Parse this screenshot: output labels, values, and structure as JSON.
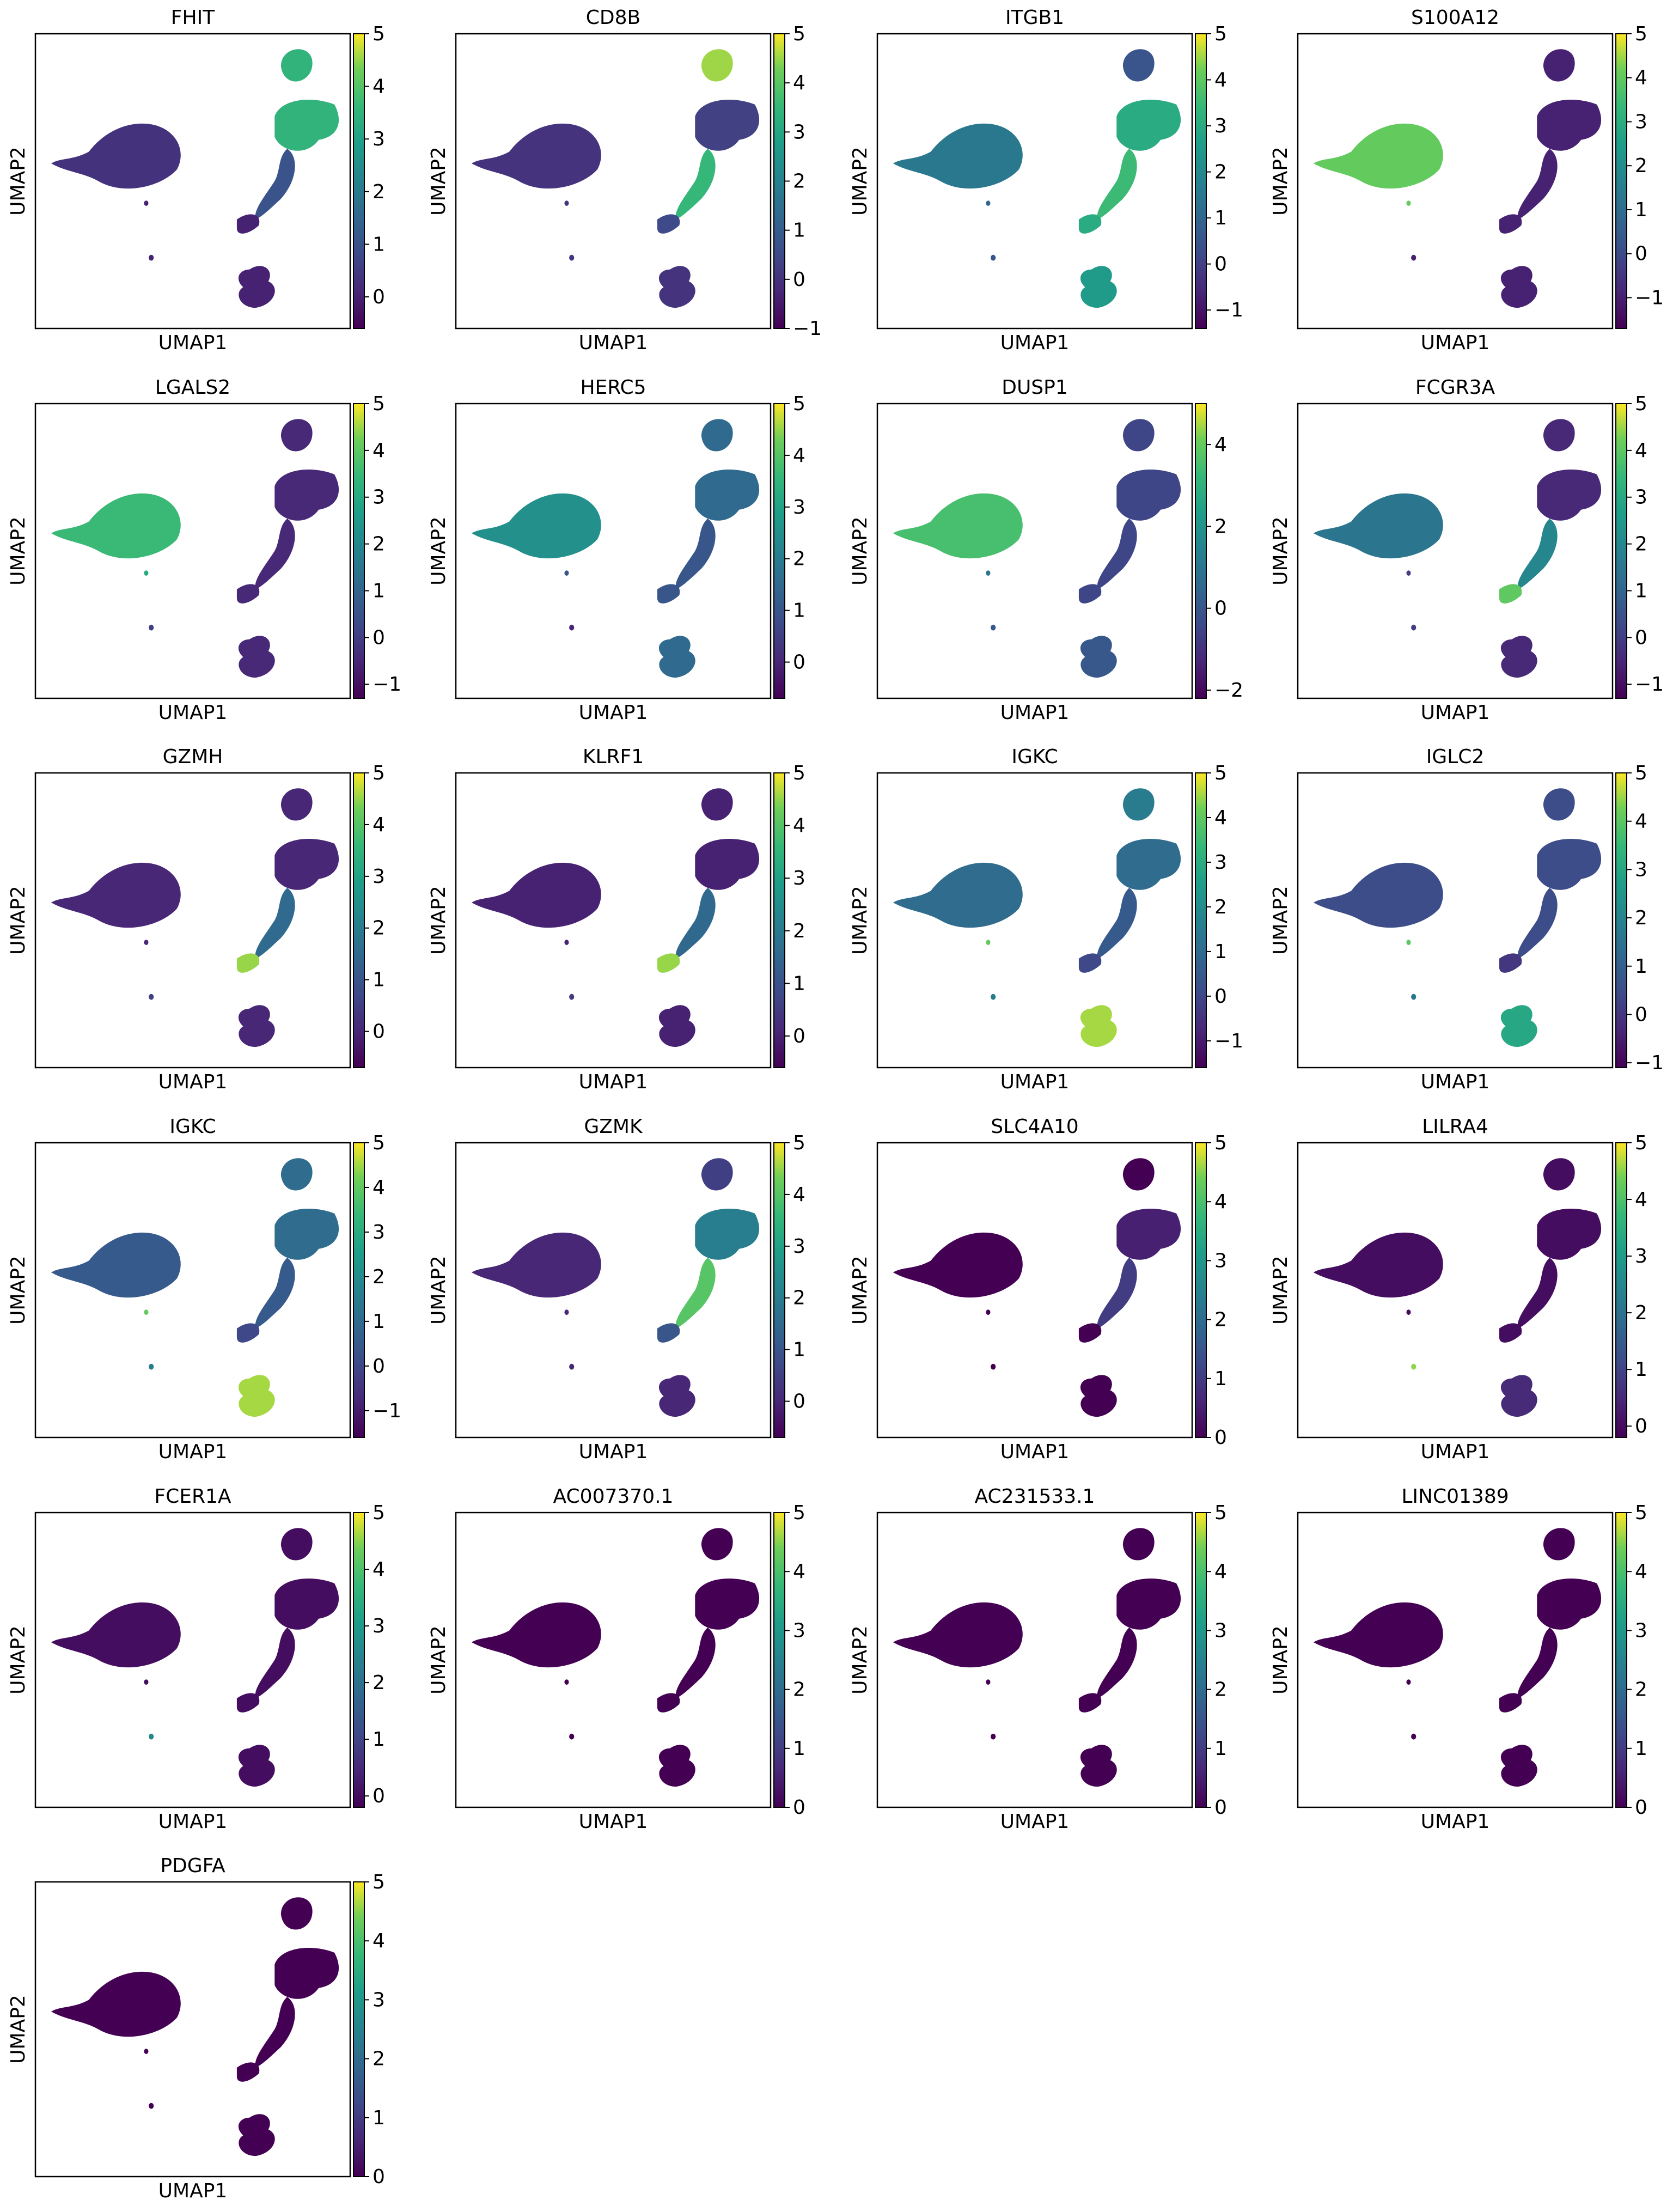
{
  "chart_data": [
    {
      "type": "scatter",
      "title": "FHIT",
      "xlabel": "UMAP1",
      "ylabel": "UMAP2",
      "clim": [
        -0.6,
        5
      ],
      "cticks": [
        0,
        1,
        2,
        3,
        4,
        5
      ],
      "values": [
        0.3,
        3.5,
        3.5,
        1,
        0,
        0,
        0,
        0
      ]
    },
    {
      "type": "scatter",
      "title": "CD8B",
      "xlabel": "UMAP1",
      "ylabel": "UMAP2",
      "clim": [
        -1,
        5
      ],
      "cticks": [
        {
          "value": -1,
          "label": "−1"
        },
        0,
        1,
        2,
        3,
        4,
        5
      ],
      "values": [
        0,
        4.5,
        0.3,
        3.5,
        0.5,
        0,
        0,
        0
      ]
    },
    {
      "type": "scatter",
      "title": "ITGB1",
      "xlabel": "UMAP1",
      "ylabel": "UMAP2",
      "clim": [
        -1.4,
        5
      ],
      "cticks": [
        {
          "value": -1,
          "label": "−1"
        },
        0,
        1,
        2,
        3,
        4,
        5
      ],
      "values": [
        1.5,
        0.5,
        3,
        3.5,
        3,
        2.5,
        1,
        0.5
      ]
    },
    {
      "type": "scatter",
      "title": "S100A12",
      "xlabel": "UMAP1",
      "ylabel": "UMAP2",
      "clim": [
        -1.7,
        5
      ],
      "cticks": [
        {
          "value": -1,
          "label": "−1"
        },
        0,
        1,
        2,
        3,
        4,
        5
      ],
      "values": [
        4,
        -1,
        -1,
        -1,
        -1,
        -1,
        4,
        -1
      ]
    },
    {
      "type": "scatter",
      "title": "LGALS2",
      "xlabel": "UMAP1",
      "ylabel": "UMAP2",
      "clim": [
        -1.3,
        5
      ],
      "cticks": [
        {
          "value": -1,
          "label": "−1"
        },
        0,
        1,
        2,
        3,
        4,
        5
      ],
      "values": [
        3.5,
        -0.5,
        -0.5,
        -0.5,
        -0.5,
        -0.5,
        3,
        0
      ]
    },
    {
      "type": "scatter",
      "title": "HERC5",
      "xlabel": "UMAP1",
      "ylabel": "UMAP2",
      "clim": [
        -0.7,
        5
      ],
      "cticks": [
        0,
        1,
        2,
        3,
        4,
        5
      ],
      "values": [
        2.5,
        1.5,
        1.5,
        1,
        1,
        1.5,
        1,
        0
      ]
    },
    {
      "type": "scatter",
      "title": "DUSP1",
      "xlabel": "UMAP1",
      "ylabel": "UMAP2",
      "clim": [
        -2.2,
        5
      ],
      "cticks": [
        {
          "value": -2,
          "label": "−2"
        },
        0,
        2,
        4
      ],
      "values": [
        3.5,
        -0.5,
        -0.5,
        -0.5,
        -0.5,
        0,
        1,
        0
      ]
    },
    {
      "type": "scatter",
      "title": "FCGR3A",
      "xlabel": "UMAP1",
      "ylabel": "UMAP2",
      "clim": [
        -1.3,
        5
      ],
      "cticks": [
        {
          "value": -1,
          "label": "−1"
        },
        0,
        1,
        2,
        3,
        4,
        5
      ],
      "values": [
        1.5,
        -0.5,
        -0.5,
        2,
        4,
        -0.5,
        0,
        0
      ]
    },
    {
      "type": "scatter",
      "title": "GZMH",
      "xlabel": "UMAP1",
      "ylabel": "UMAP2",
      "clim": [
        -0.7,
        5
      ],
      "cticks": [
        0,
        1,
        2,
        3,
        4,
        5
      ],
      "values": [
        0,
        0,
        0,
        1.5,
        4.5,
        0,
        0,
        0.5
      ]
    },
    {
      "type": "scatter",
      "title": "KLRF1",
      "xlabel": "UMAP1",
      "ylabel": "UMAP2",
      "clim": [
        -0.6,
        5
      ],
      "cticks": [
        0,
        1,
        2,
        3,
        4,
        5
      ],
      "values": [
        0,
        0,
        0,
        1.5,
        4.5,
        0,
        0,
        0.5
      ]
    },
    {
      "type": "scatter",
      "title": "IGKC",
      "xlabel": "UMAP1",
      "ylabel": "UMAP2",
      "clim": [
        -1.6,
        5
      ],
      "cticks": [
        {
          "value": -1,
          "label": "−1"
        },
        0,
        1,
        2,
        3,
        4,
        5
      ],
      "values": [
        1,
        1.5,
        1,
        0.5,
        0,
        4.5,
        4,
        1.5
      ]
    },
    {
      "type": "scatter",
      "title": "IGLC2",
      "xlabel": "UMAP1",
      "ylabel": "UMAP2",
      "clim": [
        -1.1,
        5
      ],
      "cticks": [
        {
          "value": -1,
          "label": "−1"
        },
        0,
        1,
        2,
        3,
        4,
        5
      ],
      "values": [
        0.5,
        0.5,
        0.5,
        0.5,
        0,
        3,
        4,
        1.5
      ]
    },
    {
      "type": "scatter",
      "title": "IGKC",
      "xlabel": "UMAP1",
      "ylabel": "UMAP2",
      "clim": [
        -1.6,
        5
      ],
      "cticks": [
        {
          "value": -1,
          "label": "−1"
        },
        0,
        1,
        2,
        3,
        4,
        5
      ],
      "values": [
        0.5,
        1,
        1,
        0.5,
        0,
        4.5,
        4,
        1.5
      ]
    },
    {
      "type": "scatter",
      "title": "GZMK",
      "xlabel": "UMAP1",
      "ylabel": "UMAP2",
      "clim": [
        -0.7,
        5
      ],
      "cticks": [
        0,
        1,
        2,
        3,
        4,
        5
      ],
      "values": [
        0,
        0.5,
        2,
        4,
        1,
        0,
        0,
        0
      ]
    },
    {
      "type": "scatter",
      "title": "SLC4A10",
      "xlabel": "UMAP1",
      "ylabel": "UMAP2",
      "clim": [
        0,
        5
      ],
      "cticks": [
        0,
        1,
        2,
        3,
        4,
        5
      ],
      "values": [
        0,
        0,
        0.5,
        1,
        0,
        0,
        0,
        0
      ]
    },
    {
      "type": "scatter",
      "title": "LILRA4",
      "xlabel": "UMAP1",
      "ylabel": "UMAP2",
      "clim": [
        -0.2,
        5
      ],
      "cticks": [
        0,
        1,
        2,
        3,
        4,
        5
      ],
      "values": [
        0,
        0,
        0,
        0,
        0,
        0.5,
        0,
        4.5
      ]
    },
    {
      "type": "scatter",
      "title": "FCER1A",
      "xlabel": "UMAP1",
      "ylabel": "UMAP2",
      "clim": [
        -0.2,
        5
      ],
      "cticks": [
        0,
        1,
        2,
        3,
        4,
        5
      ],
      "values": [
        0,
        0,
        0,
        0,
        0,
        0,
        0,
        2.5
      ]
    },
    {
      "type": "scatter",
      "title": "AC007370.1",
      "xlabel": "UMAP1",
      "ylabel": "UMAP2",
      "clim": [
        0,
        5
      ],
      "cticks": [
        0,
        1,
        2,
        3,
        4,
        5
      ],
      "values": [
        0,
        0,
        0,
        0,
        0,
        0,
        0,
        0
      ]
    },
    {
      "type": "scatter",
      "title": "AC231533.1",
      "xlabel": "UMAP1",
      "ylabel": "UMAP2",
      "clim": [
        0,
        5
      ],
      "cticks": [
        0,
        1,
        2,
        3,
        4,
        5
      ],
      "values": [
        0,
        0,
        0,
        0,
        0,
        0,
        0,
        0
      ]
    },
    {
      "type": "scatter",
      "title": "LINC01389",
      "xlabel": "UMAP1",
      "ylabel": "UMAP2",
      "clim": [
        0,
        5
      ],
      "cticks": [
        0,
        1,
        2,
        3,
        4,
        5
      ],
      "values": [
        0,
        0,
        0,
        0,
        0,
        0,
        0,
        0
      ]
    },
    {
      "type": "scatter",
      "title": "PDGFA",
      "xlabel": "UMAP1",
      "ylabel": "UMAP2",
      "clim": [
        0,
        5
      ],
      "cticks": [
        0,
        1,
        2,
        3,
        4,
        5
      ],
      "values": [
        0,
        0,
        0,
        0,
        0,
        0,
        0,
        0
      ]
    }
  ]
}
